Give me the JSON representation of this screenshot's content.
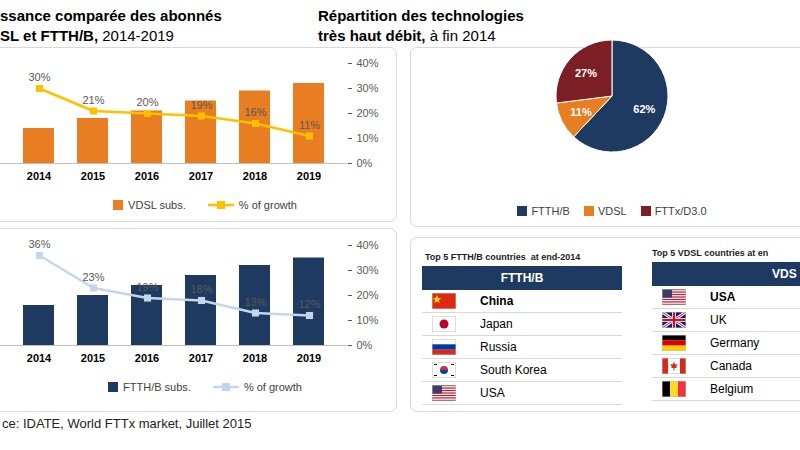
{
  "titles": {
    "left": [
      [
        "ssance comparée des abonnés"
      ],
      [
        "SL et FTTH/B,",
        " 2014-2019"
      ]
    ],
    "right": [
      [
        "Répartition des technologies"
      ],
      [
        "très haut débit,",
        " à fin 2014"
      ]
    ]
  },
  "chart_data": [
    {
      "type": "bar",
      "categories": [
        "2014",
        "2015",
        "2016",
        "2017",
        "2018",
        "2019"
      ],
      "series": [
        {
          "name": "VDSL subs.",
          "type": "bar",
          "color": "#e97d22",
          "values": [
            14,
            18,
            21,
            25,
            29,
            32
          ]
        },
        {
          "name": "% of growth",
          "type": "line",
          "axis": "y2",
          "color": "#ffc000",
          "marker": "square",
          "values": [
            30,
            21,
            20,
            19,
            16,
            11
          ],
          "value_labels": [
            "30%",
            "21%",
            "20%",
            "19%",
            "16%",
            "11%"
          ]
        }
      ],
      "ylim": [
        0,
        40
      ],
      "y2lim": [
        0,
        40
      ],
      "y2ticks": [
        {
          "value": 0,
          "label": "0%"
        },
        {
          "value": 10,
          "label": "10%"
        },
        {
          "value": 20,
          "label": "20%"
        },
        {
          "value": 30,
          "label": "30%"
        },
        {
          "value": 40,
          "label": "40%"
        }
      ],
      "data_labels": true,
      "legend": "bottom"
    },
    {
      "type": "bar",
      "categories": [
        "2014",
        "2015",
        "2016",
        "2017",
        "2018",
        "2019"
      ],
      "series": [
        {
          "name": "FTTH/B subs.",
          "type": "bar",
          "color": "#1f3a60",
          "values": [
            16,
            20,
            24,
            28,
            32,
            35
          ]
        },
        {
          "name": "% of growth",
          "type": "line",
          "axis": "y2",
          "color": "#c5d6ec",
          "marker": "square",
          "values": [
            36,
            23,
            19,
            18,
            13,
            12
          ],
          "value_labels": [
            "36%",
            "23%",
            "19%",
            "18%",
            "13%",
            "12%"
          ]
        }
      ],
      "ylim": [
        0,
        40
      ],
      "y2lim": [
        0,
        40
      ],
      "y2ticks": [
        {
          "value": 0,
          "label": "0%"
        },
        {
          "value": 10,
          "label": "10%"
        },
        {
          "value": 20,
          "label": "20%"
        },
        {
          "value": 30,
          "label": "30%"
        },
        {
          "value": 40,
          "label": "40%"
        }
      ],
      "data_labels": true,
      "legend": "bottom"
    },
    {
      "type": "pie",
      "categories": [
        "FTTH/B",
        "VDSL",
        "FTTx/D3.0"
      ],
      "values": [
        62,
        11,
        27
      ],
      "value_labels": [
        "62%",
        "11%",
        "27%"
      ],
      "colors": [
        "#1f3a60",
        "#e97d22",
        "#7b1f24"
      ],
      "data_labels": true,
      "legend": "bottom"
    }
  ],
  "tables": [
    {
      "caption": "Top 5 FTTH/B countries  at end-2014",
      "header": "FTTH/B",
      "rows": [
        "China",
        "Japan",
        "Russia",
        "South Korea",
        "USA"
      ]
    },
    {
      "caption": "Top 5 VDSL countries at en",
      "header": "VDS",
      "rows": [
        "USA",
        "UK",
        "Germany",
        "Canada",
        "Belgium"
      ]
    }
  ],
  "source": "ce: IDATE, World FTTx market, Juillet 2015"
}
